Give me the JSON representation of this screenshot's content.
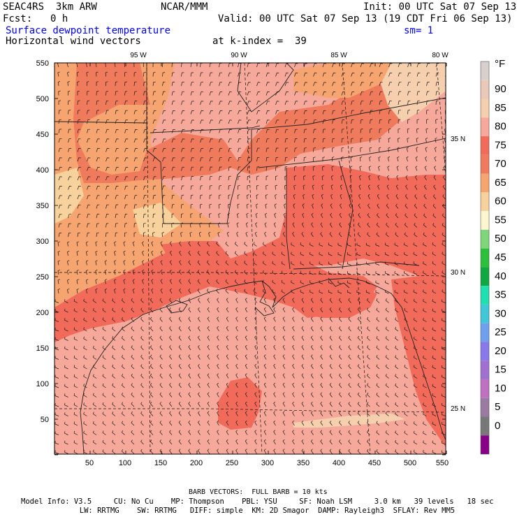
{
  "header": {
    "model": "SEAC4RS  3km ARW",
    "org": "NCAR/MMM",
    "init": "Init: 00 UTC Sat 07 Sep 13",
    "fcst_label": "Fcst:",
    "fcst_value": "0 h",
    "valid": "Valid: 00 UTC Sat 07 Sep 13 (19 CDT Fri 06 Sep 13)",
    "field": "Surface dewpoint temperature",
    "smoothing": "sm= 1",
    "vectors": "Horizontal wind vectors",
    "k_index": "at k-index =  39"
  },
  "axes": {
    "lon_labels": [
      "95 W",
      "90 W",
      "85 W",
      "80 W"
    ],
    "lat_labels": [
      "35 N",
      "30 N",
      "25 N"
    ],
    "x_ticks": [
      "50",
      "100",
      "150",
      "200",
      "250",
      "300",
      "350",
      "400",
      "450",
      "500",
      "550"
    ],
    "y_ticks": [
      "550",
      "500",
      "450",
      "400",
      "350",
      "300",
      "250",
      "200",
      "150",
      "100",
      "50"
    ]
  },
  "colorbar": {
    "unit": "°F",
    "levels": [
      "90",
      "85",
      "80",
      "75",
      "70",
      "65",
      "60",
      "55",
      "50",
      "45",
      "40",
      "35",
      "30",
      "25",
      "20",
      "15",
      "10",
      "5",
      "0"
    ],
    "colors": [
      "#d8d0cc",
      "#ecc8b8",
      "#f6cfae",
      "#f6a89a",
      "#f26a5a",
      "#f07a5c",
      "#f6a470",
      "#f8d29c",
      "#fdf6cf",
      "#7ed67a",
      "#2bbf3a",
      "#10a840",
      "#20e0b0",
      "#40c8d8",
      "#6fa0f0",
      "#8878e8",
      "#a070d0",
      "#c070c0",
      "#9a7aa0",
      "#787878",
      "#880088"
    ]
  },
  "footer": {
    "barb": "BARB VECTORS:  FULL BARB = 10 kts",
    "line1": "Model Info: V3.5     CU: No Cu    MP: Thompson    PBL: YSU     SF: Noah LSM     3.0 km   39 levels   18 sec",
    "line2": "                  LW: RRTMG    SW: RRTMG   DIFF: simple  KM: 2D Smagor  DAMP: Rayleigh3  SFLAY: Rev MM5"
  }
}
